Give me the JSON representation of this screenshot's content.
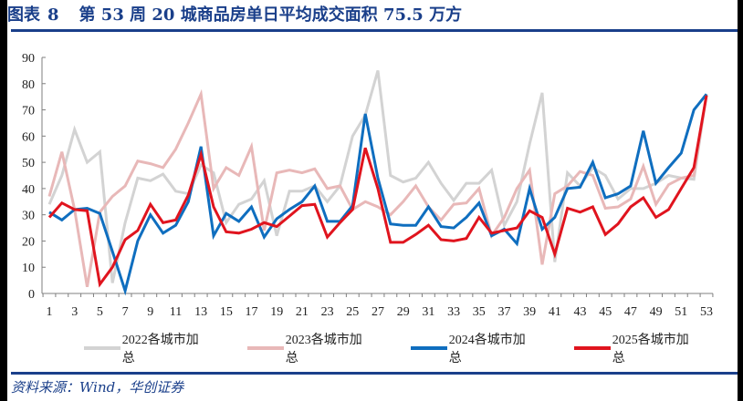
{
  "header": {
    "figure_label": "图表",
    "figure_number": "8",
    "title": "第 53 周 20 城商品房单日平均成交面积 75.5 万方"
  },
  "footer": {
    "source": "资料来源：Wind，华创证券"
  },
  "colors": {
    "brand": "#1a3f8a",
    "s2022": "#d3d3d3",
    "s2023": "#e8b8b8",
    "s2024": "#0f6ebf",
    "s2025": "#e0141e"
  },
  "chart_data": {
    "type": "line",
    "title": "第 53 周 20 城商品房单日平均成交面积 75.5 万方",
    "xlabel": "",
    "ylabel": "",
    "ylim": [
      0,
      90
    ],
    "yticks": [
      0,
      10,
      20,
      30,
      40,
      50,
      60,
      70,
      80,
      90
    ],
    "xticks_labeled": [
      1,
      3,
      5,
      7,
      9,
      11,
      13,
      15,
      17,
      19,
      21,
      23,
      25,
      27,
      29,
      31,
      33,
      35,
      37,
      39,
      41,
      43,
      45,
      47,
      49,
      51,
      53
    ],
    "x": [
      1,
      2,
      3,
      4,
      5,
      6,
      7,
      8,
      9,
      10,
      11,
      12,
      13,
      14,
      15,
      16,
      17,
      18,
      19,
      20,
      21,
      22,
      23,
      24,
      25,
      26,
      27,
      28,
      29,
      30,
      31,
      32,
      33,
      34,
      35,
      36,
      37,
      38,
      39,
      40,
      41,
      42,
      43,
      44,
      45,
      46,
      47,
      48,
      49,
      50,
      51,
      52,
      53
    ],
    "legend_position": "bottom",
    "grid": false,
    "series": [
      {
        "name": "2022各城市加总",
        "color": "#d3d3d3",
        "values": [
          34,
          45,
          62.5,
          50,
          54,
          4,
          27,
          44,
          43,
          45.5,
          39,
          38,
          49,
          46,
          27,
          34,
          36,
          43,
          22,
          39,
          39,
          41,
          35,
          41,
          60,
          68,
          85,
          45,
          42.5,
          44,
          50,
          42,
          35.5,
          42,
          42,
          47,
          26,
          35,
          57,
          76.5,
          12,
          46,
          41,
          48,
          45,
          36,
          40,
          40,
          42,
          45,
          44,
          43.5,
          76
        ]
      },
      {
        "name": "2023各城市加总",
        "color": "#e8b8b8",
        "values": [
          37,
          54,
          32,
          2.5,
          31,
          37,
          41,
          50.5,
          49.5,
          48,
          55,
          65,
          76,
          40,
          48,
          45,
          56,
          24,
          46,
          47,
          46,
          47.5,
          40,
          41,
          32,
          35,
          33,
          30,
          35,
          41,
          33,
          28,
          34,
          34.5,
          40,
          22,
          29,
          40,
          47,
          11,
          38,
          41,
          46.5,
          45,
          32.5,
          33,
          36,
          48.5,
          34,
          41.5,
          44,
          45,
          76
        ]
      },
      {
        "name": "2024各城市加总",
        "color": "#0f6ebf",
        "values": [
          31,
          28,
          32,
          32.5,
          30.5,
          16,
          1,
          20,
          30,
          23,
          26,
          35,
          56,
          22,
          30.5,
          27.5,
          33,
          21.5,
          28.5,
          32,
          35,
          41,
          27.5,
          27.5,
          33.5,
          68.5,
          44,
          26.5,
          26,
          26,
          33,
          25.5,
          25,
          29,
          34.5,
          22,
          24.5,
          19,
          40,
          24.5,
          29,
          40,
          40.5,
          50,
          36.5,
          38,
          41,
          62,
          42,
          48,
          53.5,
          70,
          76
        ]
      },
      {
        "name": "2025各城市加总",
        "color": "#e0141e",
        "values": [
          29,
          34.5,
          32,
          31.5,
          3.5,
          10,
          20.5,
          24,
          34,
          27,
          28,
          37.5,
          53,
          33,
          23.5,
          23,
          24.5,
          27,
          25.5,
          29.5,
          33.5,
          34,
          21.5,
          27,
          32,
          55.5,
          40,
          19.5,
          19.5,
          22.5,
          26,
          20.5,
          20,
          21,
          29,
          23,
          24,
          25,
          31.5,
          29,
          15,
          32.5,
          31,
          33,
          22.5,
          26.5,
          33,
          36.5,
          29,
          32,
          40,
          48,
          75.5
        ]
      }
    ]
  }
}
